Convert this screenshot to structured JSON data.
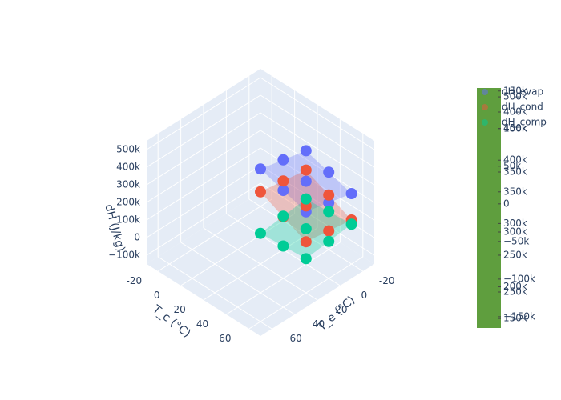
{
  "chart_data": {
    "type": "scatter3d",
    "xaxis_title": "T_e (°C)",
    "yaxis_title": "T_c (°C)",
    "zaxis_title": "dH (J/kg)",
    "xlim": [
      -30,
      70
    ],
    "ylim": [
      -30,
      70
    ],
    "zlim": [
      -150000,
      550000
    ],
    "xticks": [
      -20,
      0,
      20,
      40,
      60
    ],
    "yticks": [
      -20,
      0,
      20,
      40,
      60
    ],
    "zticks": [
      {
        "value": -100000,
        "label": "−100k"
      },
      0,
      {
        "value": 100000,
        "label": "100k"
      },
      {
        "value": 200000,
        "label": "200k"
      },
      {
        "value": 300000,
        "label": "300k"
      },
      {
        "value": 400000,
        "label": "400k"
      },
      {
        "value": 500000,
        "label": "500k"
      }
    ],
    "series": [
      {
        "name": "dH_evap",
        "color": "#636efa",
        "x": [
          -20,
          -20,
          -20,
          0,
          0,
          0,
          20,
          20,
          20
        ],
        "y": [
          20,
          40,
          60,
          20,
          40,
          60,
          20,
          40,
          60
        ],
        "z": [
          330000,
          290000,
          250000,
          360000,
          320000,
          280000,
          390000,
          350000,
          310000
        ]
      },
      {
        "name": "dH_cond",
        "color": "#ef553b",
        "x": [
          -20,
          -20,
          -20,
          0,
          0,
          0,
          20,
          20,
          20
        ],
        "y": [
          20,
          40,
          60,
          20,
          40,
          60,
          20,
          40,
          60
        ],
        "z": [
          220000,
          160000,
          100000,
          240000,
          180000,
          120000,
          260000,
          200000,
          140000
        ]
      },
      {
        "name": "dH_comp",
        "color": "#00cc96",
        "x": [
          -20,
          -20,
          -20,
          0,
          0,
          0,
          20,
          20,
          20
        ],
        "y": [
          20,
          40,
          60,
          20,
          40,
          60,
          20,
          40,
          60
        ],
        "z": [
          56000,
          66000,
          76000,
          40000,
          50000,
          60000,
          24000,
          34000,
          44000
        ]
      }
    ],
    "colorbar_color": "#5f9e3e",
    "colorbars": [
      {
        "range": [
          135000,
          514000
        ],
        "ticks": [
          {
            "value": 150000,
            "label": "150k"
          },
          {
            "value": 200000,
            "label": "200k"
          },
          {
            "value": 250000,
            "label": "250k"
          },
          {
            "value": 300000,
            "label": "300k"
          },
          {
            "value": 350000,
            "label": "350k"
          },
          {
            "value": 400000,
            "label": "400k"
          },
          {
            "value": 450000,
            "label": "450k"
          },
          {
            "value": 500000,
            "label": "500k"
          }
        ]
      },
      {
        "range": [
          220000,
          420000
        ],
        "ticks": [
          {
            "value": 250000,
            "label": "250k"
          },
          {
            "value": 300000,
            "label": "300k"
          },
          {
            "value": 350000,
            "label": "350k"
          },
          {
            "value": 400000,
            "label": "400k"
          }
        ]
      },
      {
        "range": [
          -165000,
          154000
        ],
        "ticks": [
          {
            "value": -150000,
            "label": "−150k"
          },
          {
            "value": -100000,
            "label": "−100k"
          },
          {
            "value": -50000,
            "label": "−50k"
          },
          0,
          {
            "value": 50000,
            "label": "50k"
          },
          {
            "value": 100000,
            "label": "100k"
          },
          {
            "value": 150000,
            "label": "150k"
          }
        ]
      }
    ]
  }
}
